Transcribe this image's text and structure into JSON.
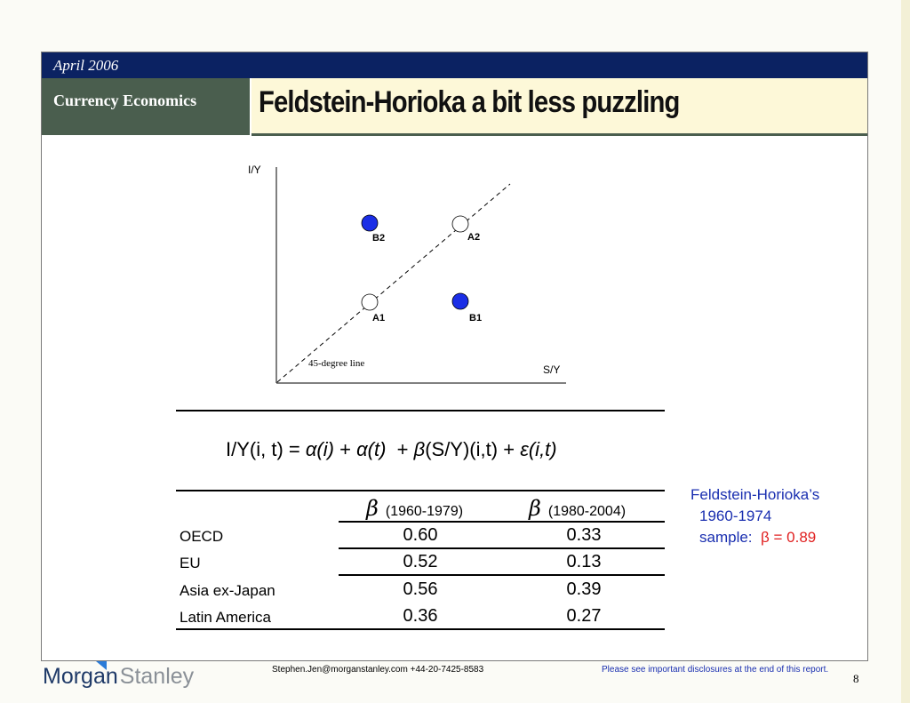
{
  "header": {
    "date": "April 2006",
    "section": "Currency Economics",
    "title": "Feldstein-Horioka a bit less puzzling"
  },
  "diagram": {
    "y_axis_label": "I/Y",
    "x_axis_label": "S/Y",
    "line_label": "45-degree line",
    "points": [
      {
        "label": "B2",
        "style": "filled-blue"
      },
      {
        "label": "A2",
        "style": "hollow"
      },
      {
        "label": "A1",
        "style": "hollow"
      },
      {
        "label": "B1",
        "style": "filled-blue"
      }
    ],
    "colors": {
      "filled": "#1b2ee6",
      "hollow": "#ffffff"
    }
  },
  "equation": {
    "lhs": "I/Y(i, t) =",
    "alpha_i": "α(i)",
    "plus1": "+",
    "alpha_t": "α(t)",
    "plus2": "+",
    "beta": "β",
    "sy": "(S/Y)(i,t)",
    "plus3": "+",
    "eps": "ε(i,t)"
  },
  "table": {
    "beta_symbol": "β",
    "col1_period": "(1960-1979)",
    "col2_period": "(1980-2004)",
    "rows": [
      {
        "name": "OECD",
        "v1": "0.60",
        "v2": "0.33"
      },
      {
        "name": "EU",
        "v1": "0.52",
        "v2": "0.13"
      },
      {
        "name": "Asia ex-Japan",
        "v1": "0.56",
        "v2": "0.39"
      },
      {
        "name": "Latin America",
        "v1": "0.36",
        "v2": "0.27"
      }
    ]
  },
  "note": {
    "line1": "Feldstein-Horioka’s",
    "line2": "1960-1974",
    "line3": "sample:",
    "beta": "β = 0.89"
  },
  "footer": {
    "logo_morgan": "Morgan",
    "logo_stanley": "Stanley",
    "contact": "Stephen.Jen@morganstanley.com +44-20-7425-8583",
    "disclosure": "Please see  important disclosures at the end of this report.",
    "page": "8"
  }
}
